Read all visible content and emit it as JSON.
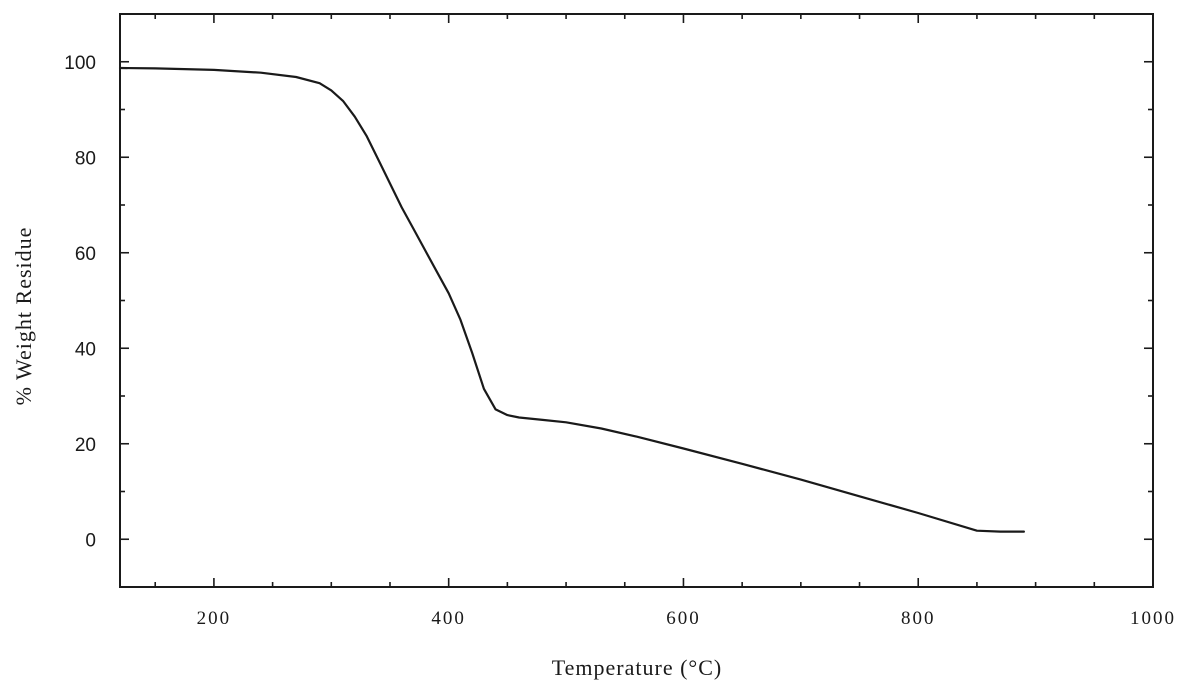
{
  "chart_data": {
    "type": "line",
    "title": "",
    "xlabel": "Temperature (°C)",
    "ylabel": "% Weight Residue",
    "xlim": [
      120,
      1000
    ],
    "ylim": [
      -10,
      110
    ],
    "x_ticks": [
      200,
      400,
      600,
      800,
      1000
    ],
    "y_ticks": [
      0,
      20,
      40,
      60,
      80,
      100
    ],
    "grid": false,
    "legend": "none",
    "line_color": "#1a1a1a",
    "series": [
      {
        "x": [
          120,
          150,
          200,
          240,
          270,
          290,
          300,
          310,
          320,
          330,
          340,
          350,
          360,
          370,
          380,
          390,
          400,
          410,
          420,
          430,
          440,
          450,
          460,
          480,
          500,
          530,
          560,
          600,
          650,
          700,
          750,
          800,
          850,
          870,
          890
        ],
        "values": [
          98.7,
          98.6,
          98.3,
          97.7,
          96.8,
          95.5,
          94.0,
          91.8,
          88.5,
          84.5,
          79.5,
          74.5,
          69.5,
          65.0,
          60.5,
          56.0,
          51.5,
          46.0,
          39.0,
          31.5,
          27.2,
          26.0,
          25.5,
          25.0,
          24.5,
          23.2,
          21.5,
          19.0,
          15.8,
          12.5,
          9.0,
          5.5,
          1.8,
          1.6,
          1.6
        ]
      }
    ]
  }
}
